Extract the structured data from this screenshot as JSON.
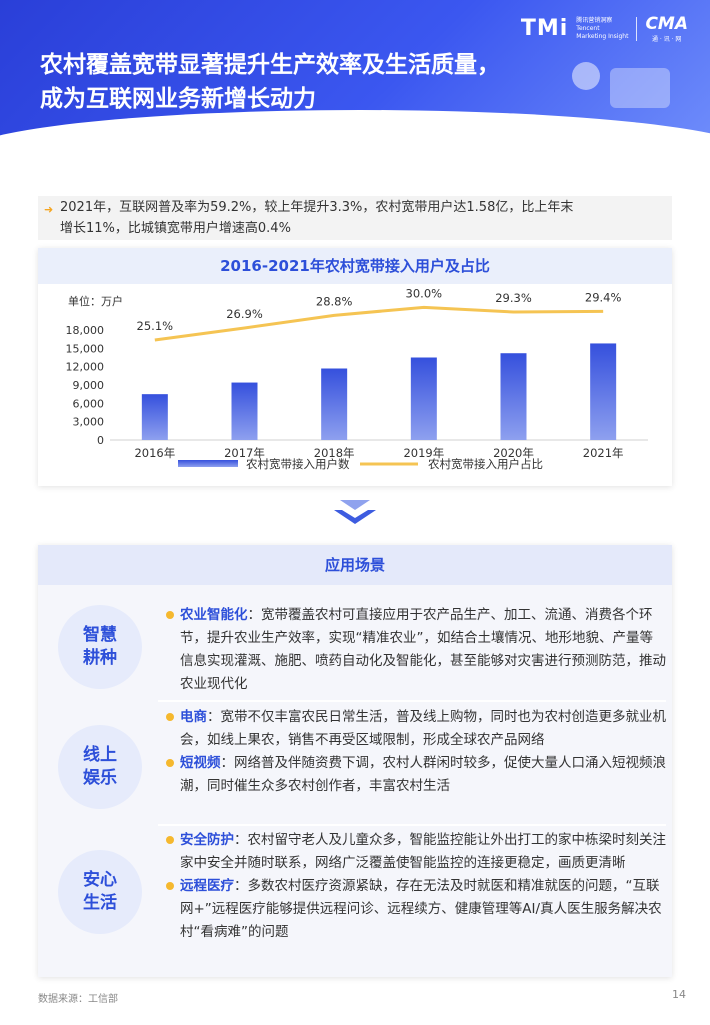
{
  "header": {
    "title_line1": "农村覆盖宽带显著提升生产效率及生活质量，",
    "title_line2": "成为互联网业务新增长动力",
    "logo_tmi": "TMi",
    "logo_tmi_cn": "腾讯营销洞察",
    "logo_tmi_en1": "Tencent",
    "logo_tmi_en2": "Marketing Insight",
    "logo_cma": "CMA",
    "logo_cma_sub": "通 · 讯 · 网"
  },
  "summary": {
    "text_line1": "2021年，互联网普及率为59.2%，较上年提升3.3%，农村宽带用户达1.58亿，比上年末",
    "text_line2": "增长11%，比城镇宽带用户增速高0.4%"
  },
  "chart_data": {
    "type": "bar",
    "title": "2016-2021年农村宽带接入用户及占比",
    "unit": "单位：万户",
    "categories": [
      "2016年",
      "2017年",
      "2018年",
      "2019年",
      "2020年",
      "2021年"
    ],
    "y_ticks": [
      "18,000",
      "15,000",
      "12,000",
      "9,000",
      "6,000",
      "3,000",
      "0"
    ],
    "ylim": [
      0,
      18000
    ],
    "series": [
      {
        "name": "农村宽带接入用户数",
        "type": "bar",
        "values": [
          7500,
          9400,
          11700,
          13500,
          14200,
          15800
        ],
        "color": "#3d5ce0"
      },
      {
        "name": "农村宽带接入用户占比",
        "type": "line",
        "values": [
          25.1,
          26.9,
          28.8,
          30.0,
          29.3,
          29.4
        ],
        "labels": [
          "25.1%",
          "26.9%",
          "28.8%",
          "30.0%",
          "29.3%",
          "29.4%"
        ],
        "color": "#f5c453"
      }
    ]
  },
  "scene": {
    "title": "应用场景",
    "rows": [
      {
        "label_line1": "智慧",
        "label_line2": "耕种",
        "items": [
          {
            "kw": "农业智能化",
            "text": "：宽带覆盖农村可直接应用于农产品生产、加工、流通、消费各个环节，提升农业生产效率，实现“精准农业”，如结合土壤情况、地形地貌、产量等信息实现灌溉、施肥、喷药自动化及智能化，甚至能够对灾害进行预测防范，推动农业现代化"
          }
        ]
      },
      {
        "label_line1": "线上",
        "label_line2": "娱乐",
        "items": [
          {
            "kw": "电商",
            "text": "：宽带不仅丰富农民日常生活，普及线上购物，同时也为农村创造更多就业机会，如线上果农，销售不再受区域限制，形成全球农产品网络"
          },
          {
            "kw": "短视频",
            "text": "：网络普及伴随资费下调，农村人群闲时较多，促使大量人口涌入短视频浪潮，同时催生众多农村创作者，丰富农村生活"
          }
        ]
      },
      {
        "label_line1": "安心",
        "label_line2": "生活",
        "items": [
          {
            "kw": "安全防护",
            "text": "：农村留守老人及儿童众多，智能监控能让外出打工的家中栋梁时刻关注家中安全并随时联系，网络广泛覆盖使智能监控的连接更稳定，画质更清晰"
          },
          {
            "kw": "远程医疗",
            "text": "：多数农村医疗资源紧缺，存在无法及时就医和精准就医的问题，“互联网+”远程医疗能够提供远程问诊、远程续方、健康管理等AI/真人医生服务解决农村“看病难”的问题"
          }
        ]
      }
    ]
  },
  "footer": {
    "source": "数据来源：工信部",
    "page_number": "14"
  }
}
